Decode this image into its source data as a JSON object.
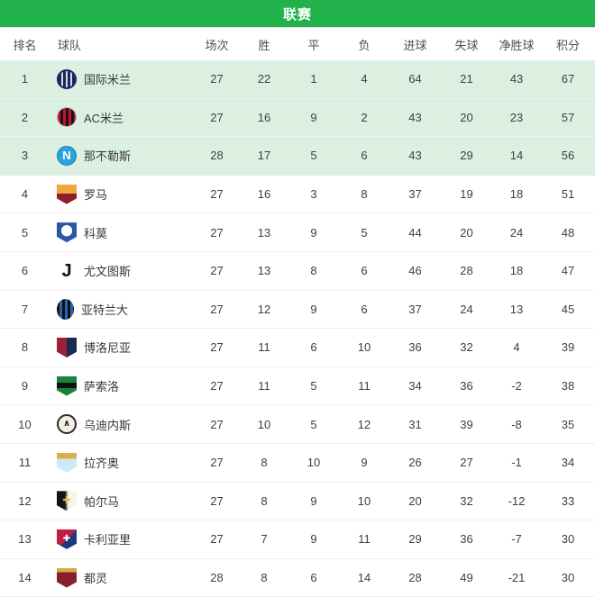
{
  "title_bar": {
    "title": "联赛",
    "bg_color": "#21b24c",
    "text_color": "#ffffff"
  },
  "table": {
    "highlight_rows": 3,
    "highlight_color": "#dcf0e2",
    "columns": [
      {
        "key": "rank",
        "label": "排名"
      },
      {
        "key": "team",
        "label": "球队"
      },
      {
        "key": "played",
        "label": "场次"
      },
      {
        "key": "win",
        "label": "胜"
      },
      {
        "key": "draw",
        "label": "平"
      },
      {
        "key": "loss",
        "label": "负"
      },
      {
        "key": "gf",
        "label": "进球"
      },
      {
        "key": "ga",
        "label": "失球"
      },
      {
        "key": "gd",
        "label": "净胜球"
      },
      {
        "key": "pts",
        "label": "积分"
      }
    ],
    "rows": [
      {
        "rank": 1,
        "team": "国际米兰",
        "played": 27,
        "win": 22,
        "draw": 1,
        "loss": 4,
        "gf": 64,
        "ga": 21,
        "gd": 43,
        "pts": 67,
        "logo": {
          "icon": "inter-milan-badge-icon",
          "shape": "circle",
          "bg": "repeating-linear-gradient(90deg,#17266b 0 3px,#ded9c8 3px 5px)",
          "border": "2px solid #17266b",
          "glyph": "",
          "glyph_color": "",
          "glyph_size": 0
        }
      },
      {
        "rank": 2,
        "team": "AC米兰",
        "played": 27,
        "win": 16,
        "draw": 9,
        "loss": 2,
        "gf": 43,
        "ga": 20,
        "gd": 23,
        "pts": 57,
        "logo": {
          "icon": "ac-milan-badge-icon",
          "shape": "circle",
          "bg": "repeating-linear-gradient(90deg,#c3122e 0 3px,#151515 3px 6px)",
          "border": "1px solid #b9b9b9",
          "glyph": "",
          "glyph_color": "",
          "glyph_size": 0
        }
      },
      {
        "rank": 3,
        "team": "那不勒斯",
        "played": 28,
        "win": 17,
        "draw": 5,
        "loss": 6,
        "gf": 43,
        "ga": 29,
        "gd": 14,
        "pts": 56,
        "logo": {
          "icon": "napoli-badge-icon",
          "shape": "circle",
          "bg": "#2aa3dc",
          "border": "1px solid #1581b4",
          "glyph": "N",
          "glyph_color": "#ffffff",
          "glyph_size": 13
        }
      },
      {
        "rank": 4,
        "team": "罗马",
        "played": 27,
        "win": 16,
        "draw": 3,
        "loss": 8,
        "gf": 37,
        "ga": 19,
        "gd": 18,
        "pts": 51,
        "logo": {
          "icon": "roma-badge-icon",
          "shape": "shield",
          "bg": "linear-gradient(180deg,#f0a83c 0 45%,#8e1f2f 45%)",
          "border": "",
          "glyph": "",
          "glyph_color": "",
          "glyph_size": 0
        }
      },
      {
        "rank": 5,
        "team": "科莫",
        "played": 27,
        "win": 13,
        "draw": 9,
        "loss": 5,
        "gf": 44,
        "ga": 20,
        "gd": 24,
        "pts": 48,
        "logo": {
          "icon": "como-badge-icon",
          "shape": "shield",
          "bg": "radial-gradient(circle at 50% 42%,#ffffff 0 36%,#2a57a5 37%)",
          "border": "",
          "glyph": "",
          "glyph_color": "",
          "glyph_size": 0
        }
      },
      {
        "rank": 6,
        "team": "尤文图斯",
        "played": 27,
        "win": 13,
        "draw": 8,
        "loss": 6,
        "gf": 46,
        "ga": 28,
        "gd": 18,
        "pts": 47,
        "logo": {
          "icon": "juventus-badge-icon",
          "shape": "none",
          "bg": "transparent",
          "border": "",
          "glyph": "J",
          "glyph_color": "#111111",
          "glyph_size": 20
        }
      },
      {
        "rank": 7,
        "team": "亚特兰大",
        "played": 27,
        "win": 12,
        "draw": 9,
        "loss": 6,
        "gf": 37,
        "ga": 24,
        "gd": 13,
        "pts": 45,
        "logo": {
          "icon": "atalanta-badge-icon",
          "shape": "oval",
          "bg": "repeating-linear-gradient(90deg,#101010 0 3px,#2664ae 3px 6px)",
          "border": "",
          "glyph": "",
          "glyph_color": "",
          "glyph_size": 0
        }
      },
      {
        "rank": 8,
        "team": "博洛尼亚",
        "played": 27,
        "win": 11,
        "draw": 6,
        "loss": 10,
        "gf": 36,
        "ga": 32,
        "gd": 4,
        "pts": 39,
        "logo": {
          "icon": "bologna-badge-icon",
          "shape": "shield",
          "bg": "linear-gradient(90deg,#9e2036 0 50%,#1c2a52 50%)",
          "border": "",
          "glyph": "",
          "glyph_color": "",
          "glyph_size": 0
        }
      },
      {
        "rank": 9,
        "team": "萨索洛",
        "played": 27,
        "win": 11,
        "draw": 5,
        "loss": 11,
        "gf": 34,
        "ga": 36,
        "gd": -2,
        "pts": 38,
        "logo": {
          "icon": "sassuolo-badge-icon",
          "shape": "shield",
          "bg": "linear-gradient(180deg,#17833b 0 32%,#101010 32% 58%,#17833b 58%)",
          "border": "",
          "glyph": "",
          "glyph_color": "",
          "glyph_size": 0
        }
      },
      {
        "rank": 10,
        "team": "乌迪内斯",
        "played": 27,
        "win": 10,
        "draw": 5,
        "loss": 12,
        "gf": 31,
        "ga": 39,
        "gd": -8,
        "pts": 35,
        "logo": {
          "icon": "udinese-badge-icon",
          "shape": "circle",
          "bg": "#f3efe4",
          "border": "2px solid #2b2b2b",
          "glyph": "∧",
          "glyph_color": "#222222",
          "glyph_size": 10
        }
      },
      {
        "rank": 11,
        "team": "拉齐奥",
        "played": 27,
        "win": 8,
        "draw": 10,
        "loss": 9,
        "gf": 26,
        "ga": 27,
        "gd": -1,
        "pts": 34,
        "logo": {
          "icon": "lazio-badge-icon",
          "shape": "shield",
          "bg": "linear-gradient(180deg,#d7b14c 0 30%,#cfe9f6 30%)",
          "border": "",
          "glyph": "",
          "glyph_color": "",
          "glyph_size": 0
        }
      },
      {
        "rank": 12,
        "team": "帕尔马",
        "played": 27,
        "win": 8,
        "draw": 9,
        "loss": 10,
        "gf": 20,
        "ga": 32,
        "gd": -12,
        "pts": 33,
        "logo": {
          "icon": "parma-badge-icon",
          "shape": "shield",
          "bg": "linear-gradient(90deg,#141414 0 42%,#f7f3e6 58%)",
          "border": "",
          "glyph": "✚",
          "glyph_color": "#d9bf45",
          "glyph_size": 11
        }
      },
      {
        "rank": 13,
        "team": "卡利亚里",
        "played": 27,
        "win": 7,
        "draw": 9,
        "loss": 11,
        "gf": 29,
        "ga": 36,
        "gd": -7,
        "pts": 30,
        "logo": {
          "icon": "cagliari-badge-icon",
          "shape": "shield",
          "bg": "linear-gradient(135deg,#bf1f3e 0 50%,#1a3a80 50%)",
          "border": "",
          "glyph": "✚",
          "glyph_color": "#ffffff",
          "glyph_size": 10
        }
      },
      {
        "rank": 14,
        "team": "都灵",
        "played": 28,
        "win": 8,
        "draw": 6,
        "loss": 14,
        "gf": 28,
        "ga": 49,
        "gd": -21,
        "pts": 30,
        "logo": {
          "icon": "torino-badge-icon",
          "shape": "shield",
          "bg": "linear-gradient(180deg,#d8ab4a 0 20%,#86202e 20%)",
          "border": "",
          "glyph": "",
          "glyph_color": "",
          "glyph_size": 0
        }
      }
    ]
  }
}
